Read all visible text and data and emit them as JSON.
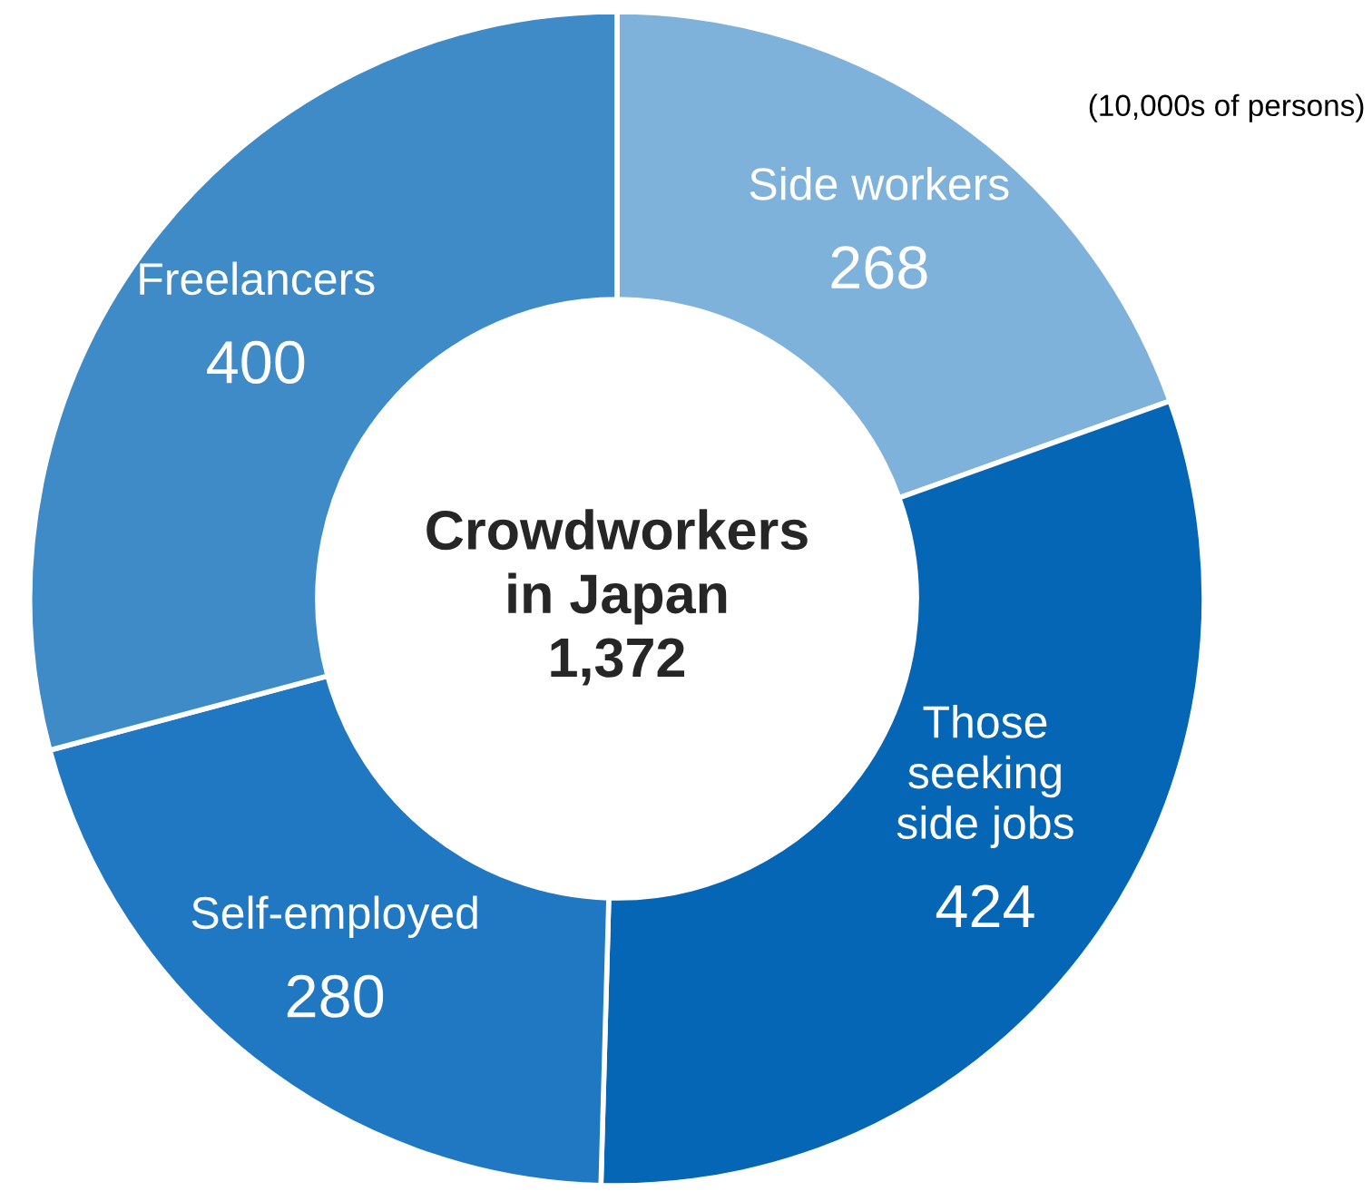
{
  "chart_data": {
    "type": "donut",
    "categories": [
      "Side workers",
      "Those\nseeking\nside jobs",
      "Self-employed",
      "Freelancers"
    ],
    "values": [
      268,
      424,
      280,
      400
    ],
    "colors": [
      "#7fb2da",
      "#0566b6",
      "#2178c2",
      "#3e8bc8"
    ],
    "data_labels": true,
    "annotations": [
      "Crowdworkers\nin Japan\n1,372",
      "(10,000s of persons)"
    ]
  }
}
